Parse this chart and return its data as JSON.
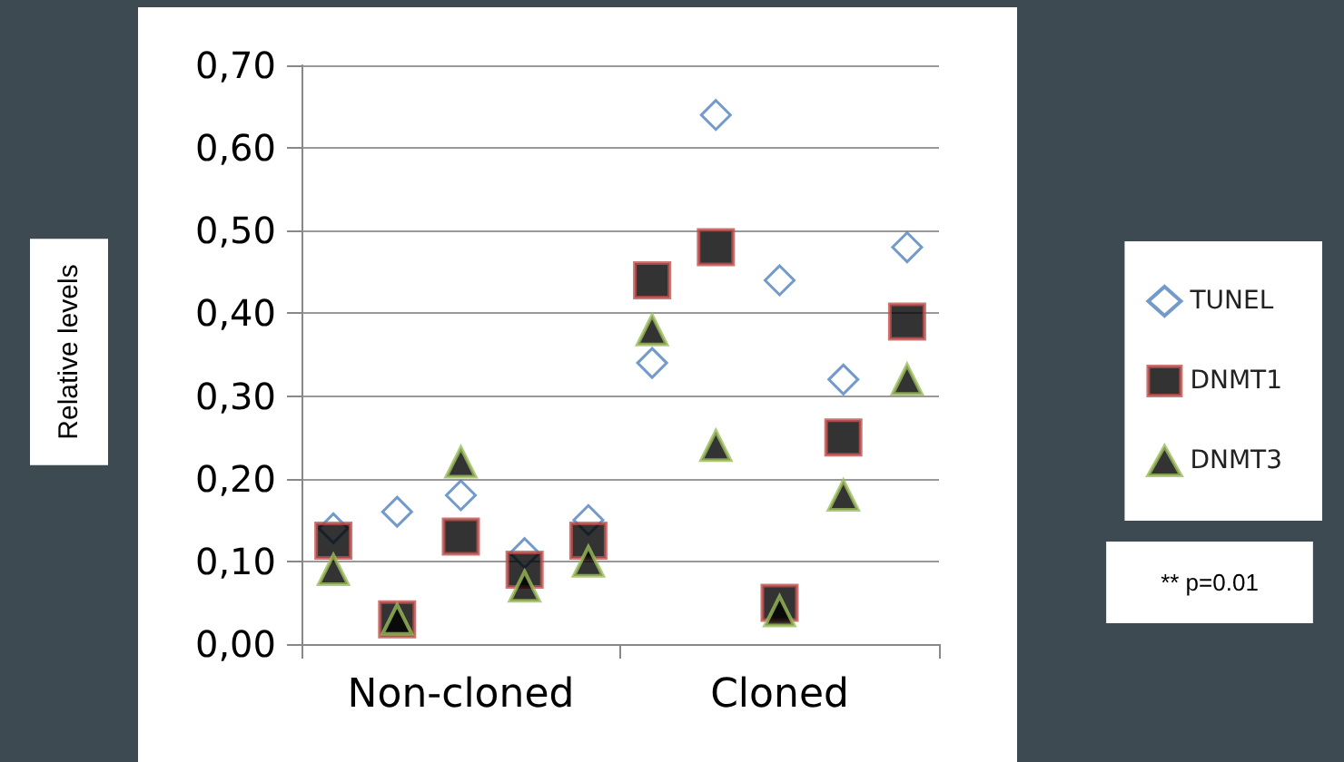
{
  "chart_data": {
    "type": "scatter",
    "categories": [
      null,
      null,
      null,
      null,
      null,
      null,
      null,
      null,
      null,
      null
    ],
    "series": [
      {
        "name": "TUNEL",
        "color": "#4f81bd",
        "marker": "diamond",
        "values": [
          0.14,
          0.16,
          0.18,
          0.11,
          0.15,
          0.34,
          0.64,
          0.44,
          0.32,
          0.48
        ]
      },
      {
        "name": "DNMT1",
        "color": "#c0504d",
        "marker": "square",
        "values": [
          0.125,
          0.03,
          0.13,
          0.09,
          0.125,
          0.44,
          0.48,
          0.05,
          0.25,
          0.39
        ]
      },
      {
        "name": "DNMT3",
        "color": "#9bbb59",
        "marker": "triangle",
        "values": [
          0.09,
          0.03,
          0.22,
          0.07,
          0.1,
          0.38,
          0.24,
          0.04,
          0.18,
          0.32
        ]
      }
    ],
    "ylim": [
      0,
      0.7
    ],
    "yticks": [
      {
        "value": 0,
        "label": "0,00"
      },
      {
        "value": 0.1,
        "label": "0,10"
      },
      {
        "value": 0.2,
        "label": "0,20"
      },
      {
        "value": 0.3,
        "label": "0,30"
      },
      {
        "value": 0.4,
        "label": "0,40"
      },
      {
        "value": 0.5,
        "label": "0,50"
      },
      {
        "value": 0.6,
        "label": "0,60"
      },
      {
        "value": 0.7,
        "label": "0,70"
      }
    ],
    "grid": "y",
    "legend": "right",
    "annotations": [
      "Non-cloned",
      "Cloned",
      "** p=0.01",
      "Relative levels"
    ]
  }
}
